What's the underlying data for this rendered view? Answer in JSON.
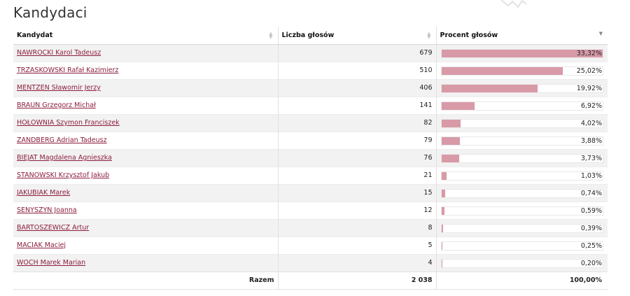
{
  "page_title": "Kandydaci",
  "table": {
    "headers": {
      "candidate": "Kandydat",
      "votes": "Liczba głosów",
      "percent": "Procent głosów"
    },
    "sort_column": "percent",
    "rows": [
      {
        "name": "NAWROCKI Karol Tadeusz",
        "votes": "679",
        "percent": "33,32%",
        "fraction": 0.3332
      },
      {
        "name": "TRZASKOWSKI Rafał Kazimierz",
        "votes": "510",
        "percent": "25,02%",
        "fraction": 0.2502
      },
      {
        "name": "MENTZEN Sławomir Jerzy",
        "votes": "406",
        "percent": "19,92%",
        "fraction": 0.1992
      },
      {
        "name": "BRAUN Grzegorz Michał",
        "votes": "141",
        "percent": "6,92%",
        "fraction": 0.0692
      },
      {
        "name": "HOŁOWNIA Szymon Franciszek",
        "votes": "82",
        "percent": "4,02%",
        "fraction": 0.0402
      },
      {
        "name": "ZANDBERG Adrian Tadeusz",
        "votes": "79",
        "percent": "3,88%",
        "fraction": 0.0388
      },
      {
        "name": "BIEJAT Magdalena Agnieszka",
        "votes": "76",
        "percent": "3,73%",
        "fraction": 0.0373
      },
      {
        "name": "STANOWSKI Krzysztof Jakub",
        "votes": "21",
        "percent": "1,03%",
        "fraction": 0.0103
      },
      {
        "name": "JAKUBIAK Marek",
        "votes": "15",
        "percent": "0,74%",
        "fraction": 0.0074
      },
      {
        "name": "SENYSZYN Joanna",
        "votes": "12",
        "percent": "0,59%",
        "fraction": 0.0059
      },
      {
        "name": "BARTOSZEWICZ Artur",
        "votes": "8",
        "percent": "0,39%",
        "fraction": 0.0039
      },
      {
        "name": "MACIAK Maciej",
        "votes": "5",
        "percent": "0,25%",
        "fraction": 0.0025
      },
      {
        "name": "WOCH Marek Marian",
        "votes": "4",
        "percent": "0,20%",
        "fraction": 0.002
      }
    ],
    "footer": {
      "label": "Razem",
      "votes": "2 038",
      "percent": "100,00%"
    }
  },
  "colors": {
    "link": "#8c1d3c",
    "bar": "#d99aa8",
    "row_alt": "#f2f2f2"
  }
}
